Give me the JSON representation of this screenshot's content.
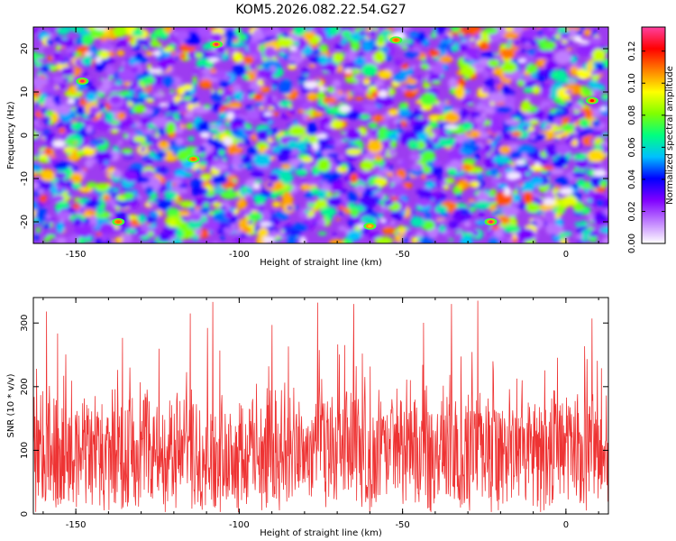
{
  "title": "KOM5.2026.082.22.54.G27",
  "chart_data": [
    {
      "type": "heatmap",
      "title": "KOM5.2026.082.22.54.G27",
      "xlabel": "Height of straight line (km)",
      "ylabel": "Frequency (Hz)",
      "xlim": [
        -163,
        13
      ],
      "ylim": [
        -25,
        25
      ],
      "x_ticks": [
        -150,
        -100,
        -50,
        0
      ],
      "x_tick_labels": [
        "-150",
        "-100",
        "-50",
        "0"
      ],
      "y_ticks": [
        20,
        10,
        0,
        -10,
        -20
      ],
      "y_tick_labels": [
        "20",
        "10",
        "0",
        "-10",
        "-20"
      ],
      "colorbar": {
        "label": "Normalized spectral amplitude",
        "range": [
          0.0,
          0.135
        ],
        "ticks": [
          0.0,
          0.02,
          0.04,
          0.06,
          0.08,
          0.1,
          0.12
        ],
        "tick_labels": [
          "0.00",
          "0.02",
          "0.04",
          "0.06",
          "0.08",
          "0.10",
          "0.12"
        ],
        "colormap": [
          "#ffffff",
          "#c080ff",
          "#8000ff",
          "#0000ff",
          "#00c0ff",
          "#00ff80",
          "#80ff00",
          "#ffff00",
          "#ff8000",
          "#ff0000",
          "#ff40a0"
        ]
      },
      "description_peaks": [
        {
          "x": -107,
          "y": 21,
          "value": 0.13
        },
        {
          "x": -148,
          "y": 12.5,
          "value": 0.13
        },
        {
          "x": -23,
          "y": -20,
          "value": 0.13
        },
        {
          "x": 8,
          "y": 8,
          "value": 0.12
        },
        {
          "x": -137,
          "y": -20,
          "value": 0.11
        },
        {
          "x": -114,
          "y": -5.5,
          "value": 0.11
        },
        {
          "x": -52,
          "y": 22,
          "value": 0.11
        },
        {
          "x": -60,
          "y": -21,
          "value": 0.1
        }
      ]
    },
    {
      "type": "line",
      "xlabel": "Height of straight line (km)",
      "ylabel": "SNR (10 * v/v)",
      "xlim": [
        -163,
        13
      ],
      "ylim": [
        0,
        340
      ],
      "x_ticks": [
        -150,
        -100,
        -50,
        0
      ],
      "x_tick_labels": [
        "-150",
        "-100",
        "-50",
        "0"
      ],
      "y_ticks": [
        0,
        100,
        200,
        300
      ],
      "y_tick_labels": [
        "0",
        "100",
        "200",
        "300"
      ],
      "series": [
        {
          "name": "SNR",
          "color": "#ee3333",
          "baseline_mean": 100,
          "peaks": [
            {
              "x": -159,
              "y": 318
            },
            {
              "x": -108,
              "y": 333
            },
            {
              "x": -76,
              "y": 332
            },
            {
              "x": -65,
              "y": 330
            },
            {
              "x": -35,
              "y": 340
            },
            {
              "x": -27,
              "y": 335
            },
            {
              "x": 8,
              "y": 307
            },
            {
              "x": -115,
              "y": 315
            },
            {
              "x": -90,
              "y": 297
            },
            {
              "x": -35,
              "y": 330
            }
          ]
        }
      ]
    }
  ]
}
